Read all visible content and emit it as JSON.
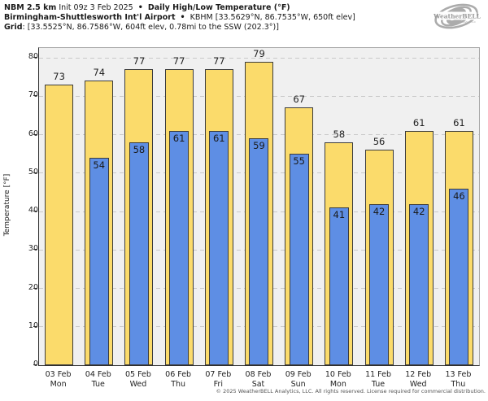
{
  "header": {
    "line1_bold": "NBM 2.5 km",
    "line1_regular": "Init 09z 3 Feb 2025",
    "bullet": "•",
    "line1_title": "Daily High/Low Temperature (°F)",
    "line2_bold": "Birmingham-Shuttlesworth Int'l Airport",
    "line2_regular": "KBHM [33.5629°N, 86.7535°W, 650ft elev]",
    "line3_bold": "Grid",
    "line3_regular": ": [33.5525°N, 86.7586°W, 604ft elev, 0.78mi to the SSW (202.3°)]"
  },
  "logo": {
    "name": "WeatherBELL",
    "sub": "Analytics LLC"
  },
  "chart_data": {
    "type": "bar",
    "title": "Daily High/Low Temperature (°F)",
    "ylabel": "Temperature [°F]",
    "ylim": [
      0,
      80
    ],
    "yticks": [
      0,
      10,
      20,
      30,
      40,
      50,
      60,
      70,
      80
    ],
    "grid": "horizontal dashed, legend none",
    "categories": [
      {
        "date": "03 Feb",
        "day": "Mon"
      },
      {
        "date": "04 Feb",
        "day": "Tue"
      },
      {
        "date": "05 Feb",
        "day": "Wed"
      },
      {
        "date": "06 Feb",
        "day": "Thu"
      },
      {
        "date": "07 Feb",
        "day": "Fri"
      },
      {
        "date": "08 Feb",
        "day": "Sat"
      },
      {
        "date": "09 Feb",
        "day": "Sun"
      },
      {
        "date": "10 Feb",
        "day": "Mon"
      },
      {
        "date": "11 Feb",
        "day": "Tue"
      },
      {
        "date": "12 Feb",
        "day": "Wed"
      },
      {
        "date": "13 Feb",
        "day": "Thu"
      }
    ],
    "series": [
      {
        "name": "High",
        "color": "#FBDB6B",
        "values": [
          73,
          74,
          77,
          77,
          77,
          79,
          67,
          58,
          56,
          61,
          61
        ]
      },
      {
        "name": "Low",
        "color": "#5E8EE4",
        "values": [
          null,
          54,
          58,
          61,
          61,
          59,
          55,
          41,
          42,
          42,
          46
        ]
      }
    ]
  },
  "colors": {
    "plot_bg": "#F0F0F0",
    "gridline": "#C9C9C9",
    "bar_border": "#3C3C3C",
    "high_fill": "#FBDB6B",
    "low_fill": "#5E8EE4",
    "axis": "#2E2E2E",
    "frame": "#A8A8A8"
  },
  "footer": "© 2025 WeatherBELL Analytics, LLC. All rights reserved. License required for commercial distribution."
}
